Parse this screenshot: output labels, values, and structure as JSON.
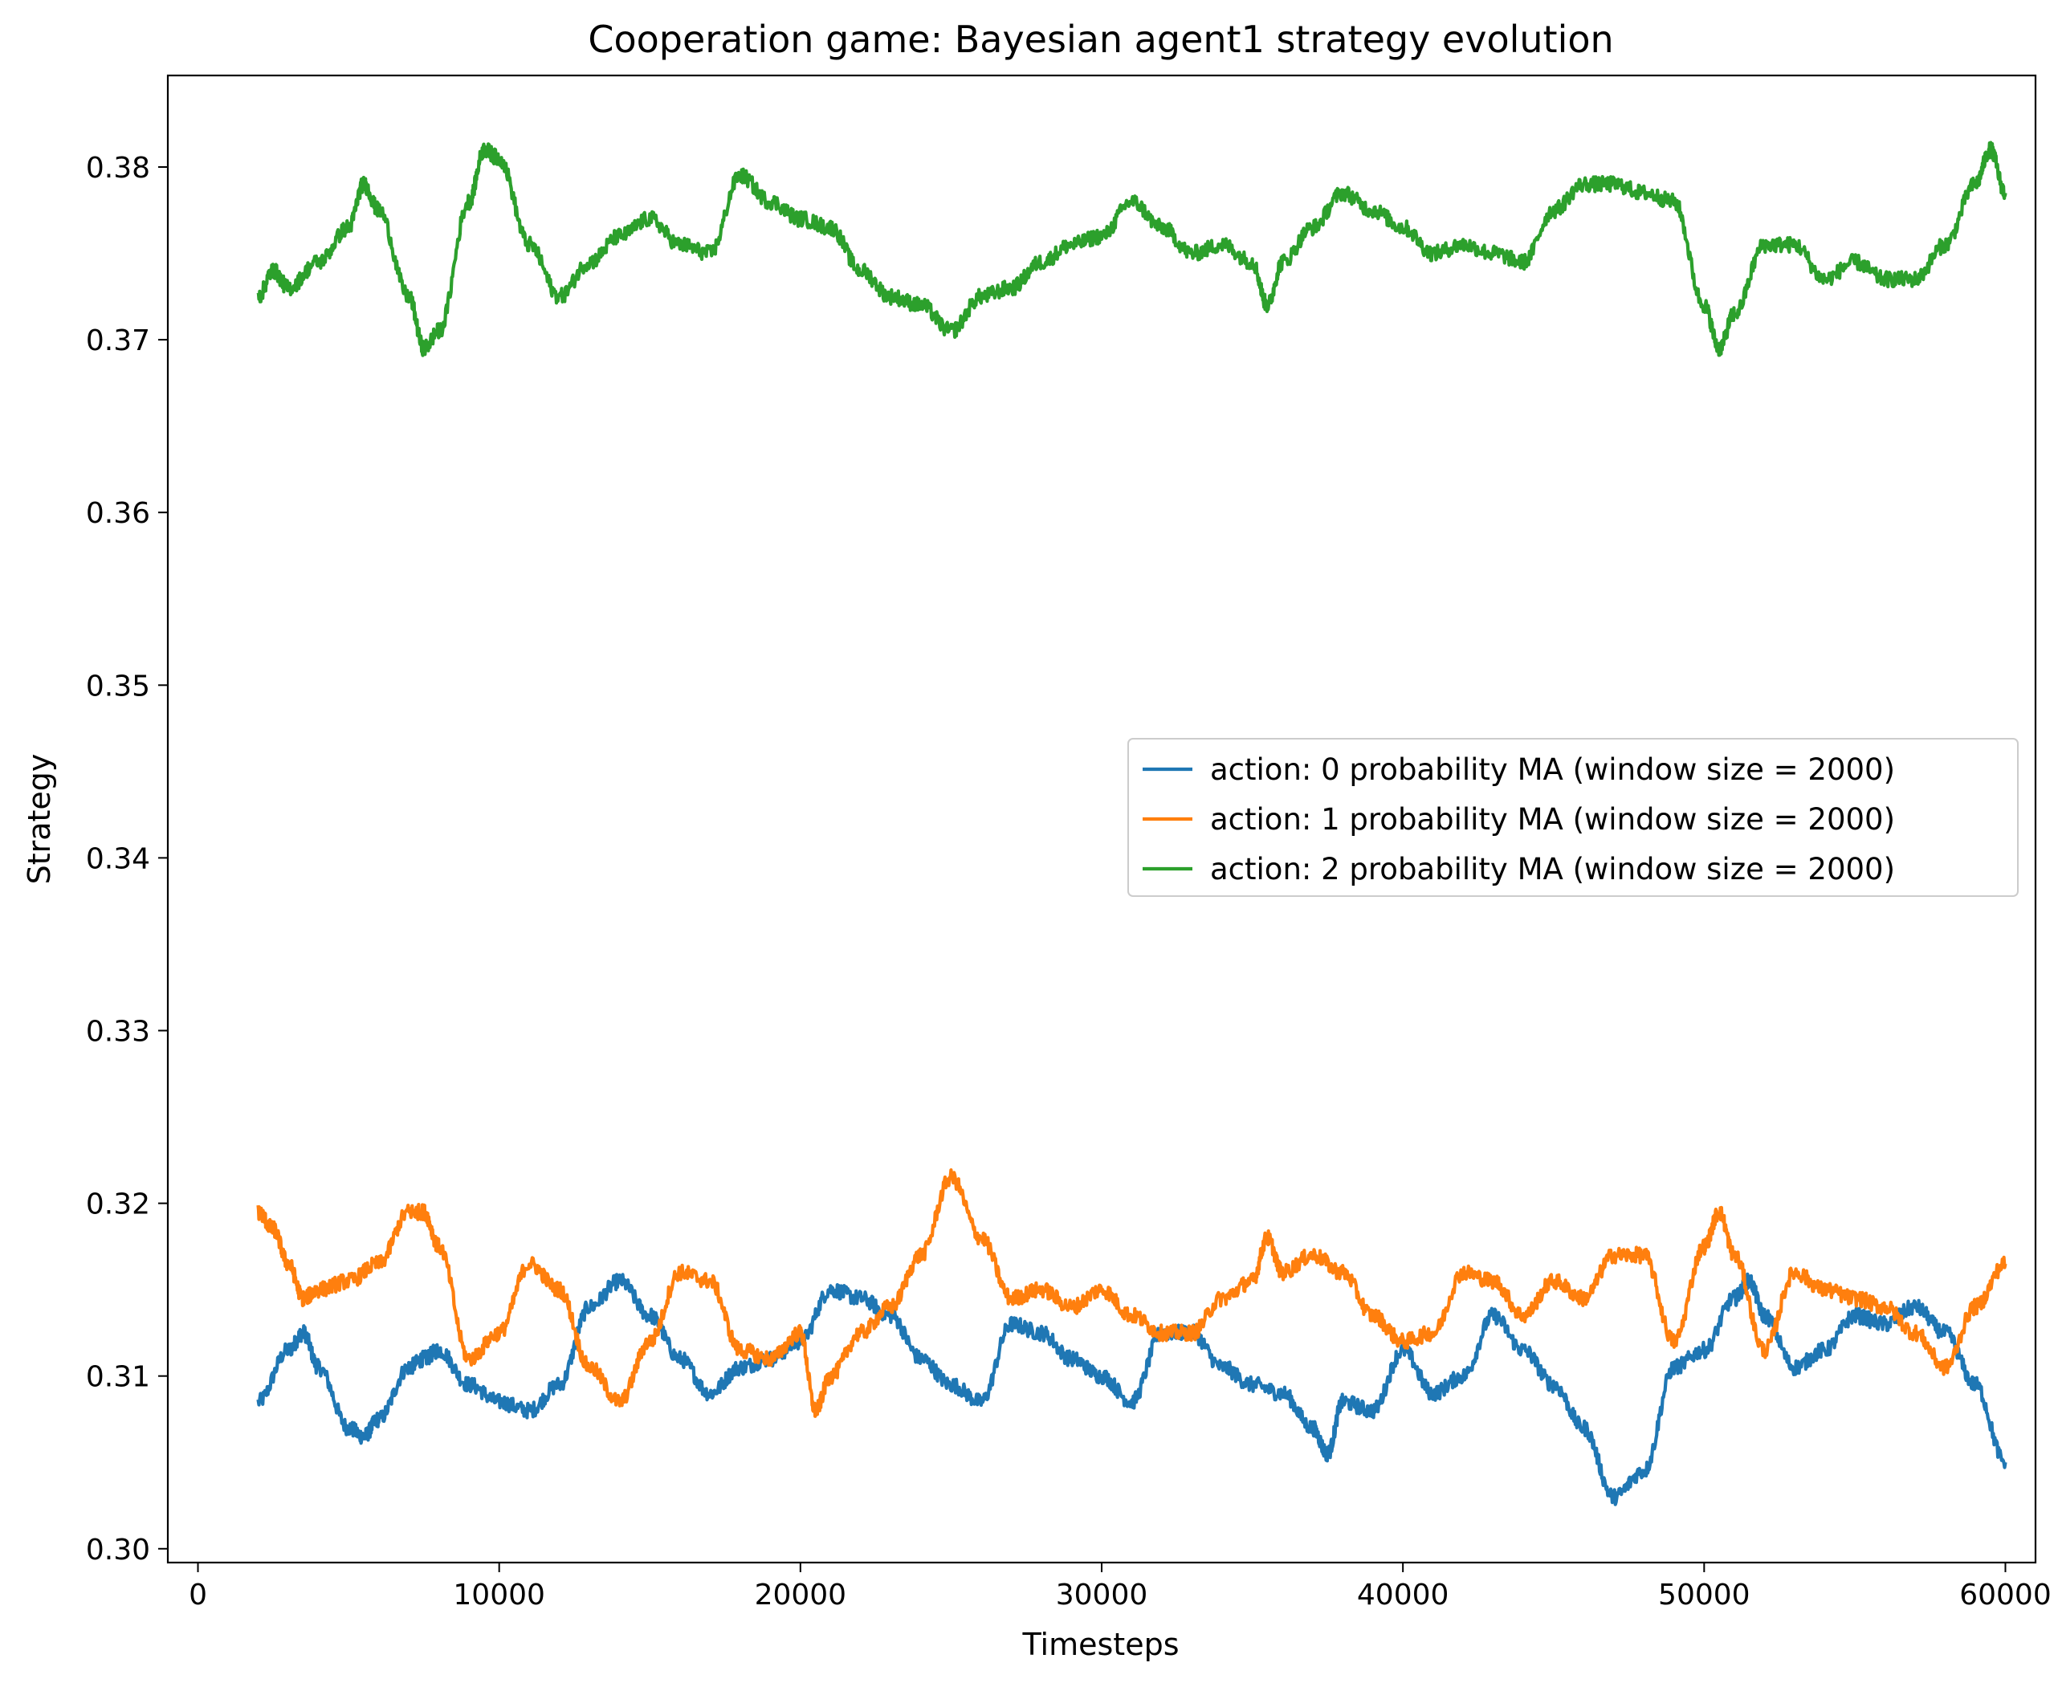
{
  "chart_data": {
    "type": "line",
    "title": "Cooperation game: Bayesian agent1 strategy evolution",
    "xlabel": "Timesteps",
    "ylabel": "Strategy",
    "xlim": [
      -1000,
      61000
    ],
    "ylim": [
      0.2992,
      0.3853
    ],
    "xticks": [
      0,
      10000,
      20000,
      30000,
      40000,
      50000,
      60000
    ],
    "xtick_labels": [
      "0",
      "10000",
      "20000",
      "30000",
      "40000",
      "50000",
      "60000"
    ],
    "yticks": [
      0.3,
      0.31,
      0.32,
      0.33,
      0.34,
      0.35,
      0.36,
      0.37,
      0.38
    ],
    "ytick_labels": [
      "0.30",
      "0.31",
      "0.32",
      "0.33",
      "0.34",
      "0.35",
      "0.36",
      "0.37",
      "0.38"
    ],
    "grid": false,
    "legend_position": "center-right",
    "series": [
      {
        "name": "action: 0 probability MA (window size = 2000)",
        "color": "#1f77b4",
        "x": [
          2000,
          3000,
          3500,
          4000,
          5000,
          5500,
          6000,
          7000,
          7500,
          8000,
          9000,
          10000,
          11000,
          12000,
          13000,
          14000,
          15000,
          16000,
          17000,
          18000,
          19000,
          20000,
          21000,
          22000,
          23000,
          24000,
          25000,
          26000,
          27000,
          28000,
          29000,
          30000,
          31000,
          32000,
          33000,
          34000,
          35000,
          36000,
          37000,
          37500,
          38000,
          39000,
          40000,
          41000,
          42000,
          43000,
          44000,
          45000,
          46000,
          47000,
          48000,
          49000,
          50000,
          51000,
          51500,
          52000,
          53000,
          54000,
          55000,
          56000,
          57000,
          58000,
          59000,
          60000
        ],
        "values": [
          0.3085,
          0.3115,
          0.3125,
          0.3105,
          0.307,
          0.3065,
          0.3075,
          0.3105,
          0.311,
          0.3115,
          0.3095,
          0.3085,
          0.308,
          0.3095,
          0.314,
          0.3155,
          0.3135,
          0.311,
          0.309,
          0.3105,
          0.311,
          0.312,
          0.315,
          0.3145,
          0.3135,
          0.311,
          0.3095,
          0.3085,
          0.313,
          0.3125,
          0.311,
          0.31,
          0.3085,
          0.3125,
          0.3125,
          0.3105,
          0.3095,
          0.309,
          0.307,
          0.3055,
          0.3085,
          0.308,
          0.3115,
          0.309,
          0.31,
          0.3135,
          0.3115,
          0.3095,
          0.307,
          0.303,
          0.3045,
          0.3105,
          0.3115,
          0.3145,
          0.3155,
          0.3135,
          0.3105,
          0.3115,
          0.3135,
          0.313,
          0.314,
          0.3125,
          0.3095,
          0.305
        ]
      },
      {
        "name": "action: 1 probability MA (window size = 2000)",
        "color": "#ff7f0e",
        "x": [
          2000,
          2500,
          3000,
          3500,
          4000,
          5000,
          6000,
          7000,
          7500,
          8000,
          9000,
          10000,
          11000,
          12000,
          13000,
          14000,
          15000,
          16000,
          17000,
          18000,
          19000,
          20000,
          20500,
          21000,
          22000,
          23000,
          24000,
          25000,
          26000,
          27000,
          28000,
          29000,
          30000,
          31000,
          32000,
          33000,
          34000,
          35000,
          35500,
          36000,
          37000,
          38000,
          39000,
          40000,
          41000,
          42000,
          43000,
          44000,
          45000,
          46000,
          47000,
          48000,
          49000,
          50000,
          50500,
          51000,
          52000,
          53000,
          54000,
          55000,
          56000,
          57000,
          58000,
          59000,
          60000
        ],
        "values": [
          0.3195,
          0.3185,
          0.3165,
          0.3145,
          0.315,
          0.3155,
          0.3165,
          0.3195,
          0.3195,
          0.3175,
          0.311,
          0.3125,
          0.3165,
          0.315,
          0.3105,
          0.3085,
          0.312,
          0.316,
          0.3155,
          0.3115,
          0.311,
          0.3125,
          0.308,
          0.31,
          0.3125,
          0.314,
          0.317,
          0.3215,
          0.318,
          0.3145,
          0.315,
          0.314,
          0.315,
          0.3135,
          0.3125,
          0.3125,
          0.3145,
          0.3155,
          0.318,
          0.316,
          0.317,
          0.316,
          0.3135,
          0.312,
          0.3125,
          0.316,
          0.3155,
          0.3135,
          0.3155,
          0.3145,
          0.317,
          0.317,
          0.312,
          0.3175,
          0.3195,
          0.317,
          0.3115,
          0.316,
          0.315,
          0.3145,
          0.314,
          0.3125,
          0.3105,
          0.314,
          0.3165
        ]
      },
      {
        "name": "action: 2 probability MA (window size = 2000)",
        "color": "#2ca02c",
        "x": [
          2000,
          2500,
          3000,
          4000,
          5000,
          5500,
          6000,
          7000,
          7500,
          8000,
          9000,
          9500,
          10000,
          11000,
          12000,
          13000,
          14000,
          15000,
          16000,
          17000,
          18000,
          19000,
          20000,
          21000,
          22000,
          23000,
          24000,
          25000,
          26000,
          27000,
          28000,
          29000,
          30000,
          31000,
          32000,
          33000,
          34000,
          35000,
          35500,
          36000,
          37000,
          38000,
          39000,
          40000,
          41000,
          42000,
          43000,
          44000,
          45000,
          46000,
          47000,
          48000,
          49000,
          50000,
          50500,
          51000,
          52000,
          53000,
          54000,
          55000,
          56000,
          57000,
          58000,
          59000,
          59500,
          60000
        ],
        "values": [
          0.3725,
          0.374,
          0.373,
          0.3745,
          0.3765,
          0.379,
          0.3775,
          0.3725,
          0.3695,
          0.3705,
          0.378,
          0.381,
          0.3805,
          0.3755,
          0.3725,
          0.3745,
          0.376,
          0.377,
          0.3755,
          0.375,
          0.3795,
          0.378,
          0.377,
          0.3765,
          0.374,
          0.3725,
          0.372,
          0.3705,
          0.3725,
          0.373,
          0.3745,
          0.3755,
          0.376,
          0.378,
          0.3765,
          0.375,
          0.3755,
          0.3745,
          0.372,
          0.3745,
          0.3765,
          0.3785,
          0.3775,
          0.3765,
          0.375,
          0.3755,
          0.375,
          0.3745,
          0.3775,
          0.379,
          0.379,
          0.3785,
          0.378,
          0.372,
          0.3695,
          0.3715,
          0.3755,
          0.3755,
          0.3735,
          0.3745,
          0.3735,
          0.3735,
          0.3755,
          0.379,
          0.381,
          0.3785
        ]
      }
    ]
  }
}
